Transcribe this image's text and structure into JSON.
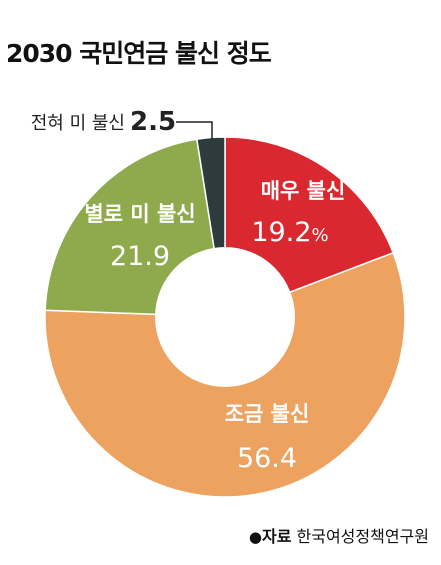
{
  "chart_data": {
    "type": "pie",
    "title": "2030 국민연금 불신 정도",
    "unit": "%",
    "categories": [
      "매우 불신",
      "조금 불신",
      "별로 미 불신",
      "전혀 미 불신"
    ],
    "values": [
      19.2,
      56.4,
      21.9,
      2.5
    ],
    "value_labels": [
      "19.2",
      "56.4",
      "21.9",
      "2.5"
    ],
    "colors": [
      "#d9282f",
      "#eda25f",
      "#8faa4c",
      "#2e3b3d"
    ],
    "donut": true,
    "legend": "none"
  },
  "source": {
    "bullet": "●",
    "label": "자료",
    "text": "한국여성정책연구원"
  }
}
